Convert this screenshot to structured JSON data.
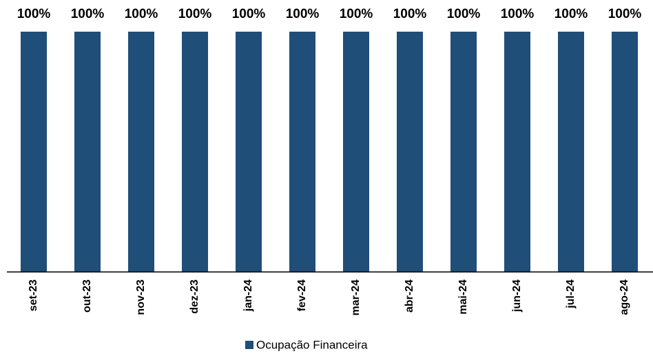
{
  "chart_data": {
    "type": "bar",
    "categories": [
      "set-23",
      "out-23",
      "nov-23",
      "dez-23",
      "jan-24",
      "fev-24",
      "mar-24",
      "abr-24",
      "mai-24",
      "jun-24",
      "jul-24",
      "ago-24"
    ],
    "series": [
      {
        "name": "Ocupação Financeira",
        "color": "#1f4e79",
        "values": [
          100,
          100,
          100,
          100,
          100,
          100,
          100,
          100,
          100,
          100,
          100,
          100
        ],
        "value_labels": [
          "100%",
          "100%",
          "100%",
          "100%",
          "100%",
          "100%",
          "100%",
          "100%",
          "100%",
          "100%",
          "100%",
          "100%"
        ]
      }
    ],
    "ylim": [
      0,
      100
    ],
    "legend": "bottom"
  }
}
